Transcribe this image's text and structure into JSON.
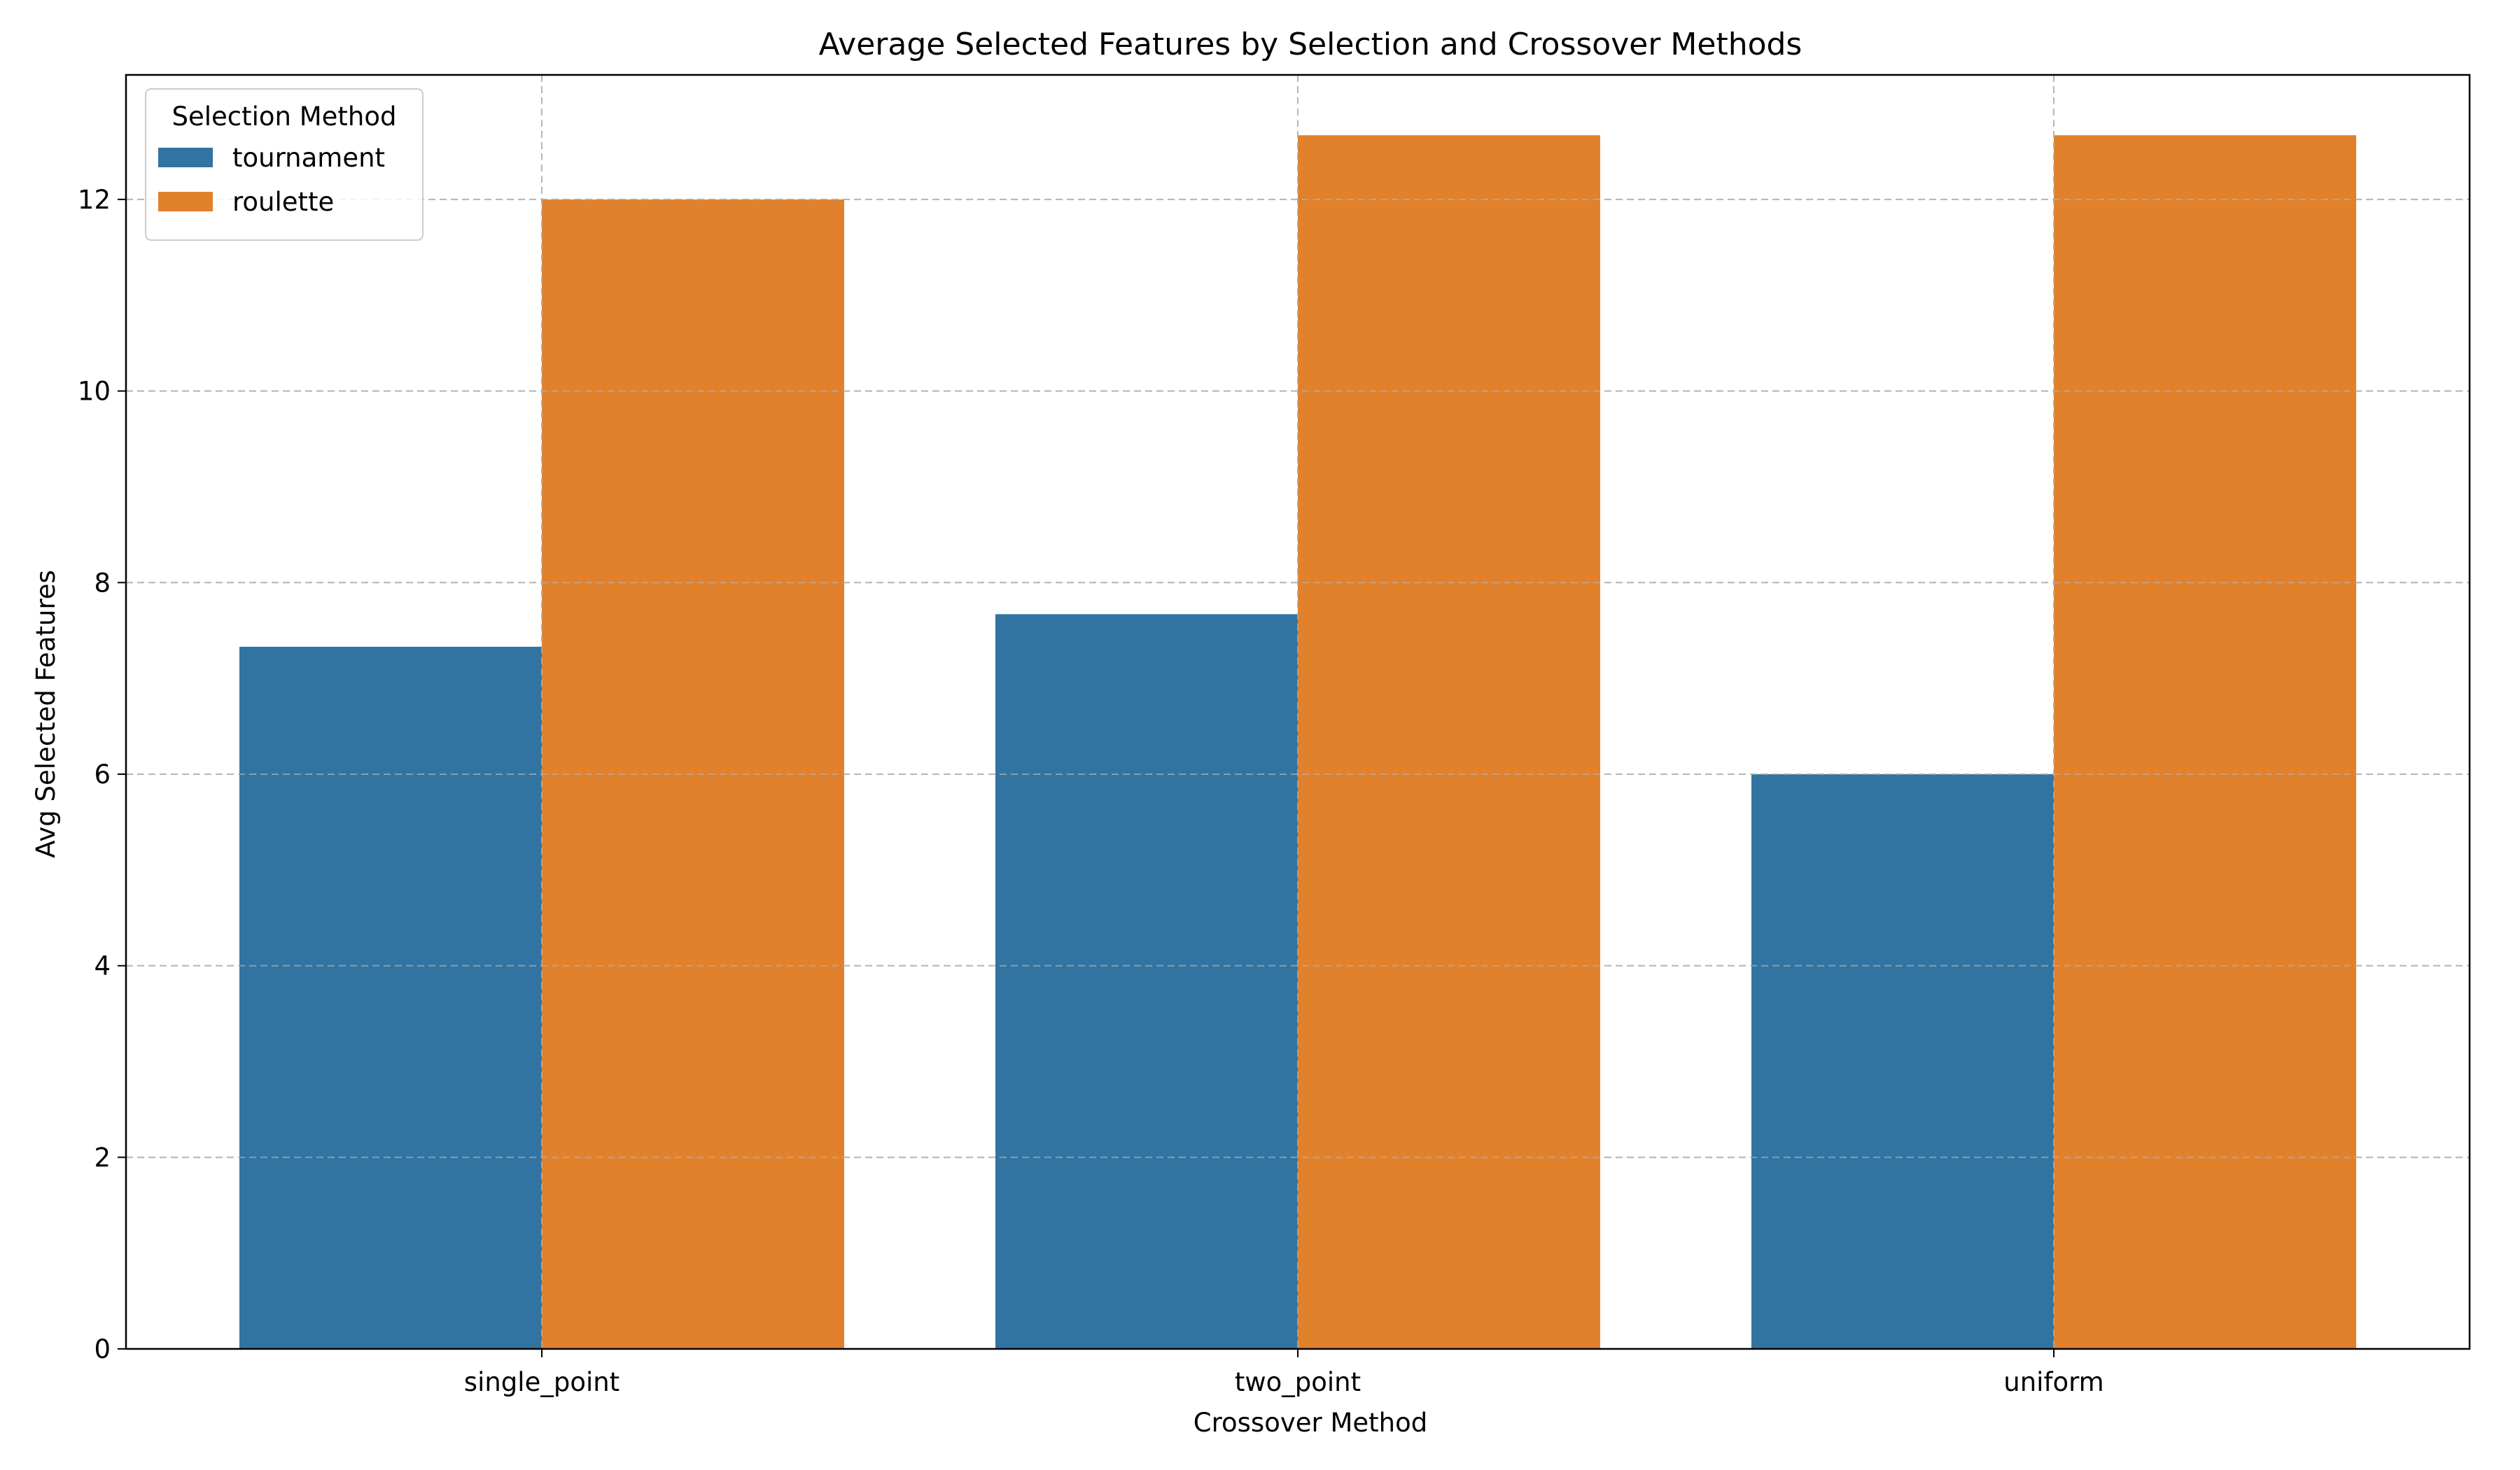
{
  "chart_data": {
    "type": "bar",
    "title": "Average Selected Features by Selection and Crossover Methods",
    "xlabel": "Crossover Method",
    "ylabel": "Avg Selected Features",
    "categories": [
      "single_point",
      "two_point",
      "uniform"
    ],
    "series": [
      {
        "name": "tournament",
        "color": "#3274a1",
        "values": [
          7.33,
          7.67,
          6.0
        ]
      },
      {
        "name": "roulette",
        "color": "#e1812c",
        "values": [
          12.0,
          12.67,
          12.67
        ]
      }
    ],
    "ylim": [
      0,
      13.3
    ],
    "yticks": [
      0,
      2,
      4,
      6,
      8,
      10,
      12
    ],
    "grid": true,
    "legend": {
      "title": "Selection Method",
      "placement": "top-left"
    }
  }
}
